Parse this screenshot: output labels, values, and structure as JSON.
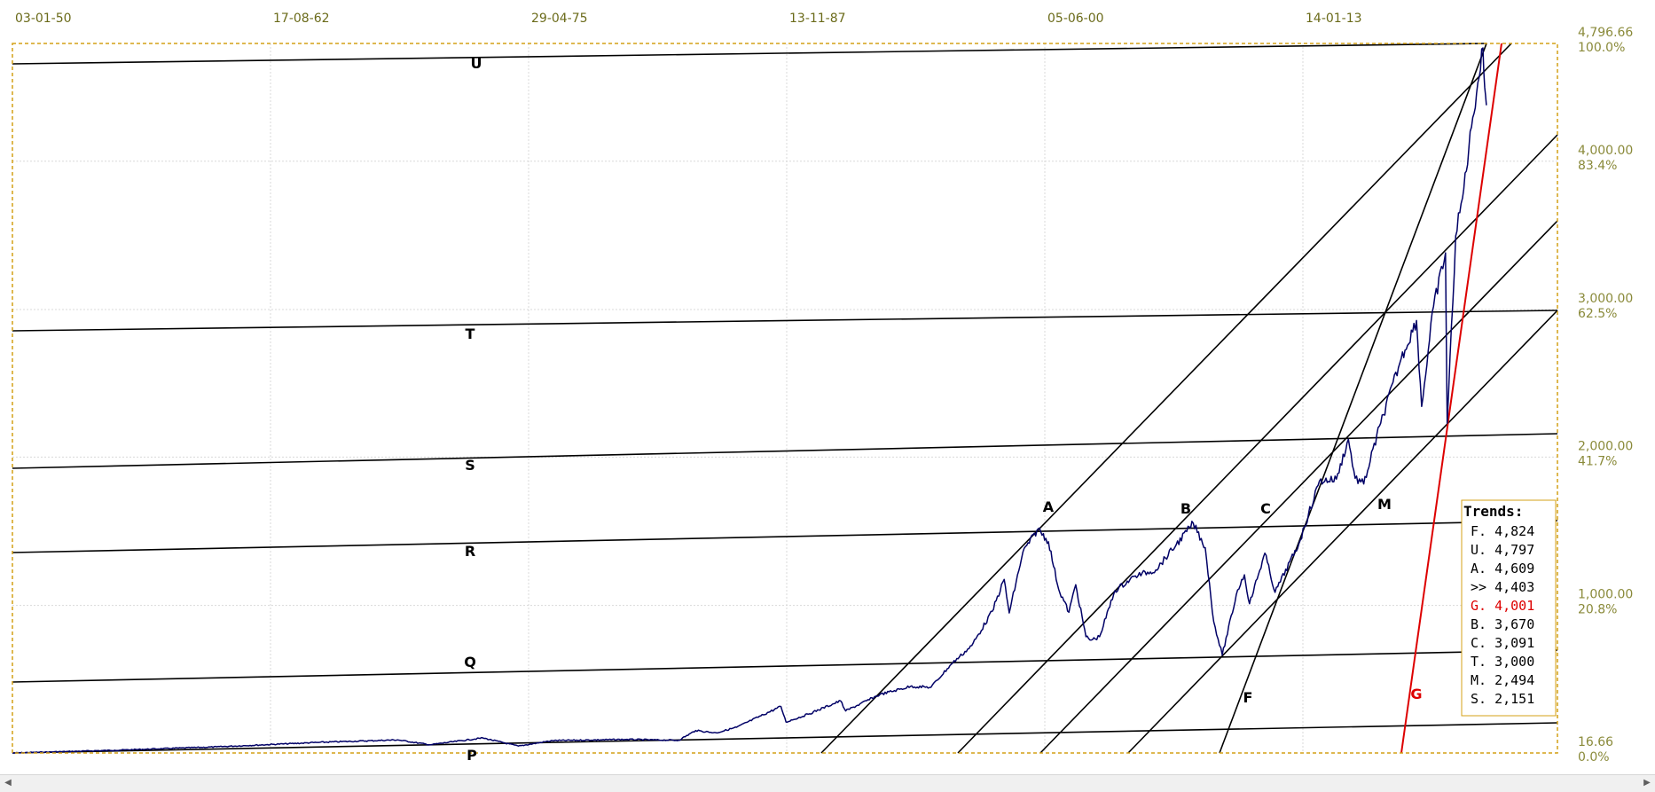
{
  "chart_data": {
    "type": "line",
    "title": "",
    "x_axis": {
      "ticks": [
        "03-01-50",
        "17-08-62",
        "29-04-75",
        "13-11-87",
        "05-06-00",
        "14-01-13"
      ]
    },
    "y_axis": {
      "scale": "percent-of-range",
      "ticks": [
        {
          "value": "4,796.66",
          "pct": "100.0%",
          "frac": 1.0
        },
        {
          "value": "4,000.00",
          "pct": "83.4%",
          "frac": 0.834
        },
        {
          "value": "3,000.00",
          "pct": "62.5%",
          "frac": 0.625
        },
        {
          "value": "2,000.00",
          "pct": "41.7%",
          "frac": 0.417
        },
        {
          "value": "1,000.00",
          "pct": "20.8%",
          "frac": 0.208
        },
        {
          "value": "16.66",
          "pct": "0.0%",
          "frac": 0.0
        }
      ]
    },
    "series": [
      {
        "color": "#000066",
        "points": [
          [
            "1950-01",
            16.7
          ],
          [
            "1955-01",
            35
          ],
          [
            "1960-01",
            58
          ],
          [
            "1965-01",
            88
          ],
          [
            "1968-11",
            105
          ],
          [
            "1970-06",
            72
          ],
          [
            "1973-01",
            118
          ],
          [
            "1974-10",
            63
          ],
          [
            "1976-06",
            100
          ],
          [
            "1980-01",
            108
          ],
          [
            "1982-08",
            102
          ],
          [
            "1983-06",
            168
          ],
          [
            "1984-06",
            152
          ],
          [
            "1985-06",
            190
          ],
          [
            "1987-08",
            330
          ],
          [
            "1987-11",
            225
          ],
          [
            "1988-12",
            278
          ],
          [
            "1990-07",
            368
          ],
          [
            "1990-10",
            300
          ],
          [
            "1992-06",
            410
          ],
          [
            "1993-12",
            465
          ],
          [
            "1994-12",
            459
          ],
          [
            "1995-12",
            615
          ],
          [
            "1996-12",
            740
          ],
          [
            "1997-12",
            970
          ],
          [
            "1998-07",
            1186
          ],
          [
            "1998-10",
            960
          ],
          [
            "1999-06",
            1370
          ],
          [
            "2000-03",
            1527
          ],
          [
            "2000-09",
            1440
          ],
          [
            "2001-03",
            1120
          ],
          [
            "2001-09",
            965
          ],
          [
            "2002-01",
            1150
          ],
          [
            "2002-07",
            800
          ],
          [
            "2002-10",
            777
          ],
          [
            "2003-03",
            800
          ],
          [
            "2003-12",
            1110
          ],
          [
            "2004-12",
            1210
          ],
          [
            "2005-12",
            1250
          ],
          [
            "2006-12",
            1420
          ],
          [
            "2007-10",
            1565
          ],
          [
            "2008-05",
            1400
          ],
          [
            "2008-10",
            900
          ],
          [
            "2009-03",
            677
          ],
          [
            "2009-12",
            1115
          ],
          [
            "2010-04",
            1217
          ],
          [
            "2010-07",
            1022
          ],
          [
            "2011-04",
            1363
          ],
          [
            "2011-10",
            1099
          ],
          [
            "2012-12",
            1426
          ],
          [
            "2013-12",
            1848
          ],
          [
            "2014-10",
            1862
          ],
          [
            "2015-05",
            2130
          ],
          [
            "2015-09",
            1867
          ],
          [
            "2016-02",
            1829
          ],
          [
            "2016-12",
            2240
          ],
          [
            "2017-12",
            2673
          ],
          [
            "2018-09",
            2930
          ],
          [
            "2018-12",
            2351
          ],
          [
            "2019-07",
            3025
          ],
          [
            "2020-02",
            3386
          ],
          [
            "2020-03",
            2237
          ],
          [
            "2020-08",
            3500
          ],
          [
            "2020-12",
            3756
          ],
          [
            "2021-06",
            4297
          ],
          [
            "2021-12",
            4766
          ],
          [
            "2022-01",
            4500
          ],
          [
            "2022-02",
            4380
          ]
        ]
      }
    ],
    "trend_letters": [
      {
        "id": "U",
        "color": "#000000"
      },
      {
        "id": "T",
        "color": "#000000"
      },
      {
        "id": "S",
        "color": "#000000"
      },
      {
        "id": "R",
        "color": "#000000"
      },
      {
        "id": "Q",
        "color": "#000000"
      },
      {
        "id": "P",
        "color": "#000000"
      },
      {
        "id": "A",
        "color": "#000000"
      },
      {
        "id": "B",
        "color": "#000000"
      },
      {
        "id": "C",
        "color": "#000000"
      },
      {
        "id": "M",
        "color": "#000000"
      },
      {
        "id": "F",
        "color": "#000000"
      },
      {
        "id": "G",
        "color": "#dd0000"
      }
    ],
    "legend": {
      "title": "Trends:",
      "placement": "bottom-right",
      "entries": [
        {
          "text": "F. 4,824",
          "color": "#000000"
        },
        {
          "text": "U. 4,797",
          "color": "#000000"
        },
        {
          "text": "A. 4,609",
          "color": "#000000"
        },
        {
          "text": ">> 4,403",
          "color": "#000000"
        },
        {
          "text": "G. 4,001",
          "color": "#dd0000"
        },
        {
          "text": "B. 3,670",
          "color": "#000000"
        },
        {
          "text": "C. 3,091",
          "color": "#000000"
        },
        {
          "text": "T. 3,000",
          "color": "#000000"
        },
        {
          "text": "M. 2,494",
          "color": "#000000"
        },
        {
          "text": "S. 2,151",
          "color": "#000000"
        }
      ]
    },
    "grid": true,
    "colors": {
      "plot_border": "#d4a017",
      "grid": "#d9d9d9",
      "price": "#000066",
      "trend": "#000000",
      "trend_red": "#dd0000",
      "axis_text": "#8a8a3a"
    }
  }
}
